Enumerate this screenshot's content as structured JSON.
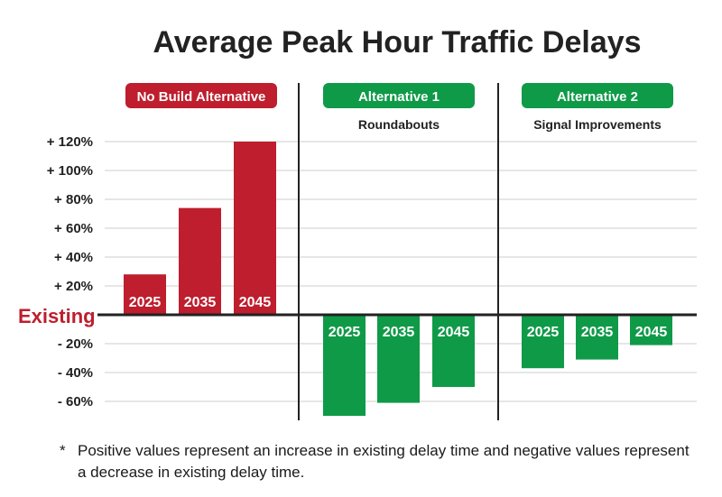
{
  "chart_data": {
    "type": "bar",
    "title": "Average Peak Hour Traffic Delays",
    "baseline_label": "Existing",
    "y_unit": "%",
    "ylim": [
      -70,
      120
    ],
    "yticks": [
      {
        "value": 120,
        "label": "+ 120%"
      },
      {
        "value": 100,
        "label": "+ 100%"
      },
      {
        "value": 80,
        "label": "+ 80%"
      },
      {
        "value": 60,
        "label": "+ 60%"
      },
      {
        "value": 40,
        "label": "+ 40%"
      },
      {
        "value": 20,
        "label": "+ 20%"
      },
      {
        "value": -20,
        "label": "- 20%"
      },
      {
        "value": -40,
        "label": "- 40%"
      },
      {
        "value": -60,
        "label": "- 60%"
      }
    ],
    "grid": true,
    "groups": [
      {
        "name": "No Build Alternative",
        "subtitle": "",
        "color": "#be1e2d",
        "categories": [
          "2025",
          "2035",
          "2045"
        ],
        "values": [
          28,
          74,
          120
        ]
      },
      {
        "name": "Alternative 1",
        "subtitle": "Roundabouts",
        "color": "#0f9a48",
        "categories": [
          "2025",
          "2035",
          "2045"
        ],
        "values": [
          -70,
          -61,
          -50
        ]
      },
      {
        "name": "Alternative 2",
        "subtitle": "Signal Improvements",
        "color": "#0f9a48",
        "categories": [
          "2025",
          "2035",
          "2045"
        ],
        "values": [
          -37,
          -31,
          -21
        ]
      }
    ]
  },
  "footnote": {
    "marker": "*",
    "text": "Positive values represent an increase in existing delay time and negative values represent a decrease in existing delay time."
  },
  "colors": {
    "baseline_label": "#be1e2d",
    "grid": "#cccccc",
    "axis": "#222222"
  }
}
